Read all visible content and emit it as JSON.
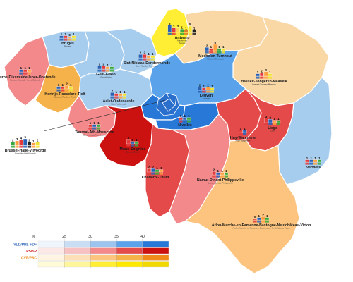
{
  "constituencies": [
    {
      "id": "antwerp",
      "name": "Antwerp",
      "sub": "Antwerpen",
      "sub2": "Anvers",
      "fill": "#ffee33",
      "seats": [
        {
          "n": "6",
          "c": "#2a62b5"
        },
        {
          "n": "3",
          "c": "#e33b3b"
        },
        {
          "n": "3",
          "c": "#ffd84a"
        },
        {
          "n": "2",
          "c": "#3aa83a"
        },
        {
          "n": "1",
          "c": "#e07a2a"
        },
        {
          "n": "5",
          "c": "#f2e233"
        },
        {
          "n": "1",
          "c": "#222"
        }
      ]
    },
    {
      "id": "mechelen",
      "name": "Mechelen-Turnhout",
      "sub": "Malines-Turnhout",
      "fill": "#f9d8a6",
      "seats": [
        {
          "n": "2",
          "c": "#2a62b5"
        },
        {
          "n": "1",
          "c": "#e33b3b"
        },
        {
          "n": "5",
          "c": "#ffa040"
        },
        {
          "n": "1",
          "c": "#3aa83a"
        },
        {
          "n": "1",
          "c": "#f2e233"
        }
      ]
    },
    {
      "id": "bruges",
      "name": "Bruges",
      "sub": "Brugge",
      "fill": "#a7cdee",
      "seats": [
        {
          "n": "1",
          "c": "#2a62b5"
        },
        {
          "n": "1",
          "c": "#e33b3b"
        },
        {
          "n": "0",
          "c": "#ffa040"
        },
        {
          "n": "1",
          "c": "#f2e233"
        }
      ]
    },
    {
      "id": "veurne",
      "name": "Veurne-Diksmuide-Ieper-Oostende",
      "sub": "Furnes-Dixmude-Ypres-Ostende",
      "fill": "#f3898a",
      "seats": [
        {
          "n": "1",
          "c": "#2a62b5"
        },
        {
          "n": "1",
          "c": "#e33b3b"
        },
        {
          "n": "1",
          "c": "#ffa040"
        }
      ]
    },
    {
      "id": "gent",
      "name": "Gent-Eeklo",
      "sub": "Gand-Eeklo",
      "fill": "#a7cdee",
      "seats": [
        {
          "n": "2",
          "c": "#2a62b5"
        },
        {
          "n": "2",
          "c": "#e33b3b"
        },
        {
          "n": "1",
          "c": "#ffa040"
        },
        {
          "n": "1",
          "c": "#3aa83a"
        }
      ]
    },
    {
      "id": "sintniklaas",
      "name": "Sint-Niklaas-Dendermonde",
      "sub": "Saint-Nicolas-Termonde",
      "fill": "#a7cdee",
      "seats": [
        {
          "n": "2",
          "c": "#2a62b5"
        },
        {
          "n": "2",
          "c": "#e33b3b"
        },
        {
          "n": "1",
          "c": "#ffa040"
        },
        {
          "n": "1",
          "c": "#f2e233"
        }
      ]
    },
    {
      "id": "kortrijk",
      "name": "Kortrijk-Roeselare-Tielt",
      "sub": "Courtrai-Roulers-Thielt",
      "fill": "#f6b24a",
      "seats": [
        {
          "n": "1",
          "c": "#2a62b5"
        },
        {
          "n": "1",
          "c": "#e33b3b"
        },
        {
          "n": "2",
          "c": "#ffa040"
        },
        {
          "n": "1",
          "c": "#f2e233"
        }
      ]
    },
    {
      "id": "aalst",
      "name": "Aalst-Oudenaarde",
      "sub": "Alost-Audenarde",
      "fill": "#a7cdee",
      "seats": [
        {
          "n": "2",
          "c": "#2a62b5"
        },
        {
          "n": "1",
          "c": "#e33b3b"
        },
        {
          "n": "1",
          "c": "#ffa040"
        },
        {
          "n": "1",
          "c": "#f2e233"
        }
      ]
    },
    {
      "id": "hasselt",
      "name": "Hasselt-Tongeren-Maaseik",
      "sub": "Hasselt-Tongres-Maaseik",
      "fill": "#f9d8a6",
      "seats": [
        {
          "n": "1",
          "c": "#2a62b5"
        },
        {
          "n": "2",
          "c": "#e33b3b"
        },
        {
          "n": "3",
          "c": "#ffa040"
        },
        {
          "n": "1",
          "c": "#f2e233"
        }
      ]
    },
    {
      "id": "leuven",
      "name": "Leuven",
      "sub": "Louvain",
      "fill": "#5aa3ea",
      "seats": [
        {
          "n": "2",
          "c": "#2a62b5"
        },
        {
          "n": "1",
          "c": "#e33b3b"
        },
        {
          "n": "2",
          "c": "#ffa040"
        },
        {
          "n": "1",
          "c": "#f2e233"
        }
      ]
    },
    {
      "id": "brussels",
      "name": "Brussel-Halle-Vilvoorde",
      "sub": "Bruxelles-Hal-Vilvorde",
      "fill": "#2878d8",
      "seats": [
        {
          "n": "2",
          "c": "#3aa83a"
        },
        {
          "n": "3",
          "c": "#ffa040"
        },
        {
          "n": "4",
          "c": "#e33b3b"
        },
        {
          "n": "5",
          "c": "#2a62b5"
        },
        {
          "n": "2",
          "c": "#222"
        },
        {
          "n": "1",
          "c": "#ffa040"
        },
        {
          "n": "2",
          "c": "#f2e233"
        }
      ]
    },
    {
      "id": "nivelles",
      "name": "Nivelles",
      "sub": "Nijvel",
      "fill": "#2878d8",
      "seats": [
        {
          "n": "1",
          "c": "#e33b3b"
        },
        {
          "n": "1",
          "c": "#2a62b5"
        },
        {
          "n": "1",
          "c": "#3aa83a"
        }
      ]
    },
    {
      "id": "tournai",
      "name": "Tournai-Ath-Mouscron",
      "sub": "Doornik-Aat-Moeskroen",
      "fill": "#f3898a",
      "seats": [
        {
          "n": "1",
          "c": "#e33b3b"
        },
        {
          "n": "1",
          "c": "#2a62b5"
        },
        {
          "n": "1",
          "c": "#3aa83a"
        }
      ]
    },
    {
      "id": "mons",
      "name": "Mons-Soignies",
      "sub": "Bergen-Zinnik",
      "fill": "#cc1111",
      "seats": [
        {
          "n": "3",
          "c": "#e33b3b"
        },
        {
          "n": "1",
          "c": "#2a62b5"
        },
        {
          "n": "1",
          "c": "#3aa83a"
        }
      ]
    },
    {
      "id": "charleroi",
      "name": "Charleroi-Thuin",
      "sub": "",
      "fill": "#e54a4a",
      "seats": [
        {
          "n": "2",
          "c": "#e33b3b"
        },
        {
          "n": "2",
          "c": "#2a62b5"
        },
        {
          "n": "1",
          "c": "#3aa83a"
        },
        {
          "n": "1",
          "c": "#ffa040"
        }
      ]
    },
    {
      "id": "namur",
      "name": "Namur-Dinant-Philippeville",
      "sub": "Namen-Dinant-Philippeville",
      "fill": "#f3898a",
      "seats": [
        {
          "n": "2",
          "c": "#e33b3b"
        },
        {
          "n": "1",
          "c": "#2a62b5"
        },
        {
          "n": "1",
          "c": "#ffa040"
        },
        {
          "n": "1",
          "c": "#3aa83a"
        }
      ]
    },
    {
      "id": "huy",
      "name": "Huy-Waremme",
      "sub": "Hoei-Borgworm",
      "fill": "#e54a4a",
      "seats": [
        {
          "n": "1",
          "c": "#e33b3b"
        },
        {
          "n": "1",
          "c": "#2a62b5"
        }
      ]
    },
    {
      "id": "liege",
      "name": "Liege",
      "sub": "Luik",
      "fill": "#e54a4a",
      "seats": [
        {
          "n": "3",
          "c": "#e33b3b"
        },
        {
          "n": "2",
          "c": "#2a62b5"
        },
        {
          "n": "1",
          "c": "#ffa040"
        },
        {
          "n": "1",
          "c": "#3aa83a"
        }
      ]
    },
    {
      "id": "verviers",
      "name": "Verviers",
      "sub": "",
      "fill": "#a7cdee",
      "seats": [
        {
          "n": "1",
          "c": "#e33b3b"
        },
        {
          "n": "1",
          "c": "#2a62b5"
        },
        {
          "n": "1",
          "c": "#ffa040"
        },
        {
          "n": "1",
          "c": "#3aa83a"
        }
      ]
    },
    {
      "id": "arlon",
      "name": "Arlon-Marche-en-Famenne-Bastogne-Neufchâteau-Virton",
      "sub": "Aarlen-Marche-en-Famenne-Bastenaken-Neufchâteau-Virton",
      "fill": "#fcc47e",
      "seats": [
        {
          "n": "0",
          "c": "#e33b3b"
        },
        {
          "n": "1",
          "c": "#2a62b5"
        },
        {
          "n": "2",
          "c": "#ffa040"
        },
        {
          "n": "1",
          "c": "#3aa83a"
        }
      ]
    }
  ],
  "legend": {
    "pct_symbol": "%",
    "ticks": [
      "25",
      "30",
      "35",
      "40"
    ],
    "parties": [
      {
        "name": "VLD/PRL-FDF",
        "color": "#2a62b5",
        "shades": [
          "#eef5fc",
          "#c9def5",
          "#9cc4ee",
          "#5aa3ea",
          "#2878d8"
        ]
      },
      {
        "name": "PS/SP",
        "color": "#cc1111",
        "shades": [
          "#fde8e8",
          "#f7c1c1",
          "#f3898a",
          "#e54a4a",
          "#cc1111"
        ]
      },
      {
        "name": "CVP/PSC",
        "color": "#f08a1a",
        "shades": [
          "#fff3e2",
          "#fde0b8",
          "#fcc47e",
          "#f6b24a",
          "#f08a1a"
        ]
      },
      {
        "name": "",
        "color": "#d4c200",
        "shades": [
          "#fffbd6",
          "#fff59a",
          "#ffee33",
          "#ffe800",
          "#f0d800"
        ]
      }
    ]
  }
}
